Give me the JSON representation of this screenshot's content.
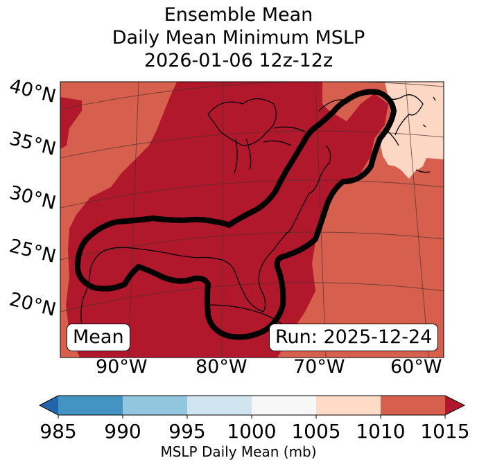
{
  "title": {
    "line1": "Ensemble Mean",
    "line2": "Daily Mean Minimum MSLP",
    "line3": "2026-01-06 12z-12z"
  },
  "map": {
    "lat_labels": [
      "40°N",
      "35°N",
      "30°N",
      "25°N",
      "20°N"
    ],
    "lon_labels": [
      "90°W",
      "80°W",
      "70°W",
      "60°W"
    ],
    "badge_left": "Mean",
    "badge_right": "Run: 2025-12-24",
    "colors": {
      "lt1010": "#fbd7c4",
      "lt1015": "#d6604d",
      "ge1015": "#b2182b",
      "contour": "#000000"
    }
  },
  "colorbar": {
    "label": "MSLP Daily Mean (mb)",
    "ticks": [
      "985",
      "990",
      "995",
      "1000",
      "1005",
      "1010",
      "1015"
    ],
    "extend": "both",
    "colors": [
      "#2166ac",
      "#4393c3",
      "#92c5de",
      "#d1e5f0",
      "#f7f7f7",
      "#fddbc7",
      "#d6604d",
      "#b2182b"
    ]
  }
}
